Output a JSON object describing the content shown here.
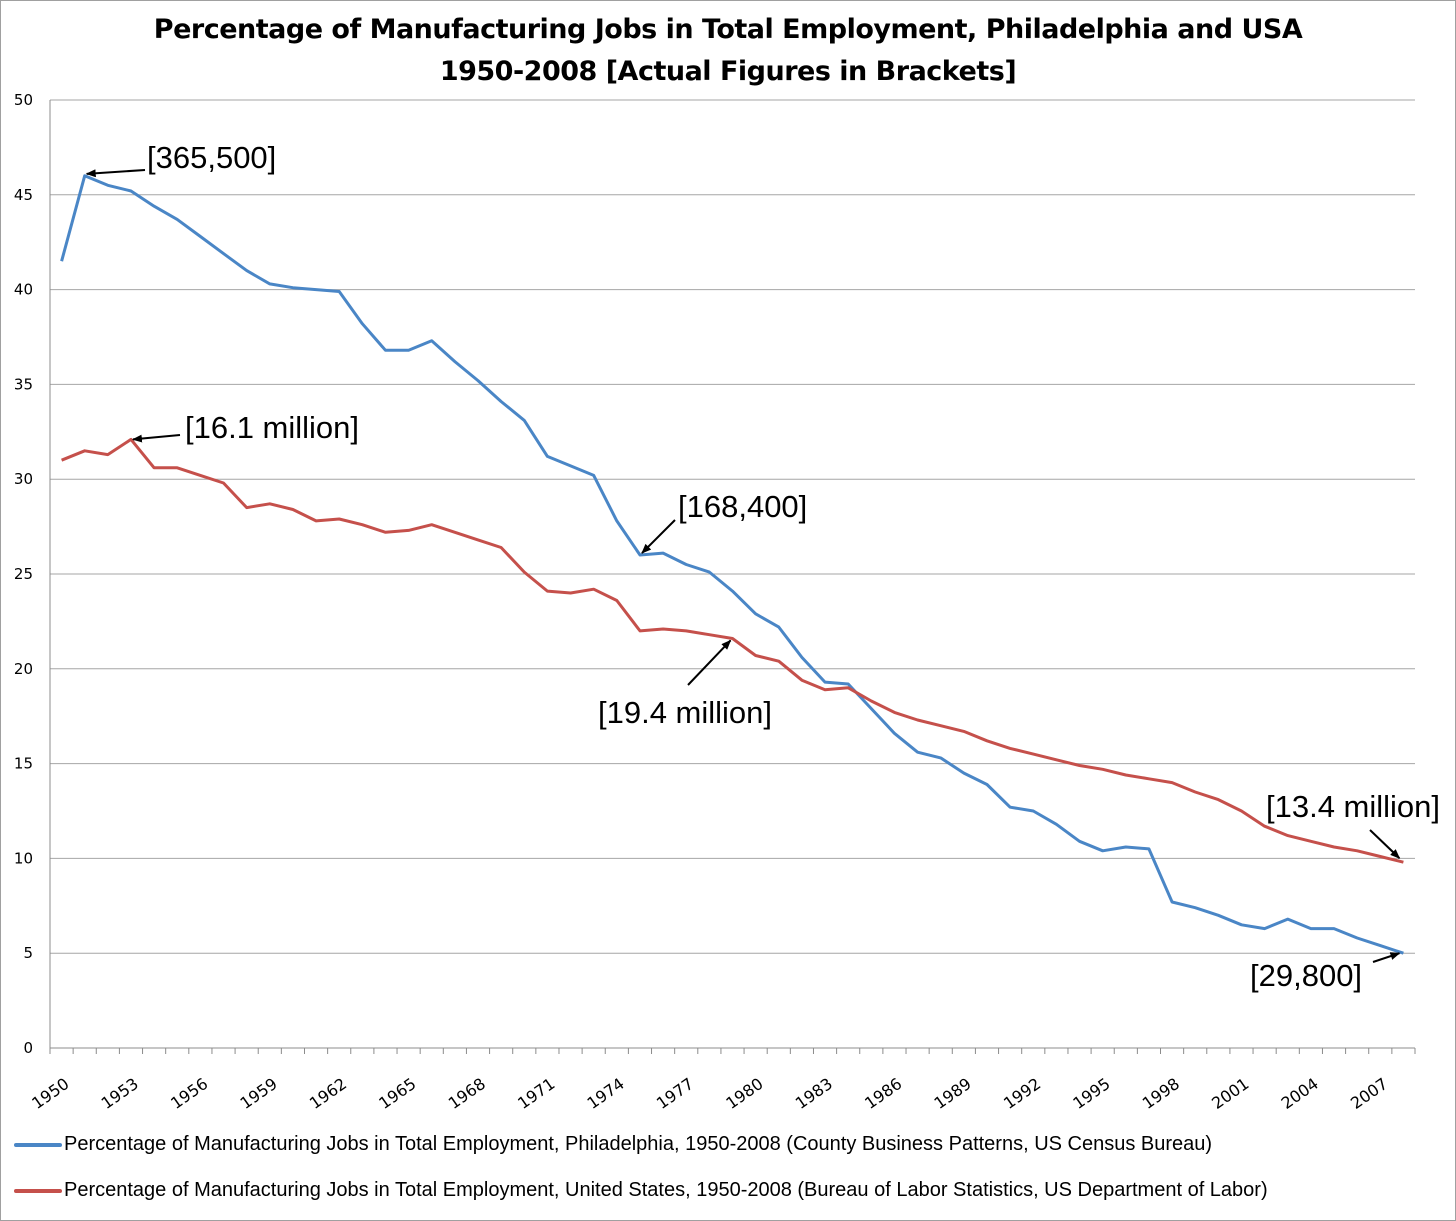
{
  "chart_data": {
    "type": "line",
    "title": "Percentage of Manufacturing Jobs in Total Employment, Philadelphia and USA",
    "subtitle": "1950-2008 [Actual Figures in Brackets]",
    "xlabel": "",
    "ylabel": "",
    "ylim": [
      0,
      50
    ],
    "yticks": [
      0,
      5,
      10,
      15,
      20,
      25,
      30,
      35,
      40,
      45,
      50
    ],
    "grid": true,
    "x": [
      1950,
      1951,
      1952,
      1953,
      1954,
      1955,
      1956,
      1957,
      1958,
      1959,
      1960,
      1961,
      1962,
      1963,
      1964,
      1965,
      1966,
      1967,
      1968,
      1969,
      1970,
      1971,
      1972,
      1973,
      1974,
      1975,
      1976,
      1977,
      1978,
      1979,
      1980,
      1981,
      1982,
      1983,
      1984,
      1985,
      1986,
      1987,
      1988,
      1989,
      1990,
      1991,
      1992,
      1993,
      1994,
      1995,
      1996,
      1997,
      1998,
      1999,
      2000,
      2001,
      2002,
      2003,
      2004,
      2005,
      2006,
      2007,
      2008
    ],
    "xtick_labels": [
      "1950",
      "1953",
      "1956",
      "1959",
      "1962",
      "1965",
      "1968",
      "1971",
      "1974",
      "1977",
      "1980",
      "1983",
      "1986",
      "1989",
      "1992",
      "1995",
      "1998",
      "2001",
      "2004",
      "2007"
    ],
    "legend_position": "bottom",
    "series": [
      {
        "name": "Percentage of Manufacturing Jobs in Total Employment, Philadelphia, 1950-2008 (County Business Patterns, US Census Bureau)",
        "color": "#4a86c6",
        "values": [
          41.5,
          46.0,
          45.5,
          45.2,
          44.4,
          43.7,
          42.8,
          41.9,
          41.0,
          40.3,
          40.1,
          40.0,
          39.9,
          38.2,
          36.8,
          36.8,
          37.3,
          36.2,
          35.2,
          34.1,
          33.1,
          31.2,
          30.7,
          30.2,
          27.8,
          26.0,
          26.1,
          25.5,
          25.1,
          24.1,
          22.9,
          22.2,
          20.6,
          19.3,
          19.2,
          17.9,
          16.6,
          15.6,
          15.3,
          14.5,
          13.9,
          12.7,
          12.5,
          11.8,
          10.9,
          10.4,
          10.6,
          10.5,
          7.7,
          7.4,
          7.0,
          6.5,
          6.3,
          6.8,
          6.3,
          6.3,
          5.8,
          5.4,
          5.0
        ]
      },
      {
        "name": "Percentage of Manufacturing Jobs in Total Employment, United States, 1950-2008 (Bureau of Labor Statistics, US Department of Labor)",
        "color": "#c5504b",
        "values": [
          31.0,
          31.5,
          31.3,
          32.1,
          30.6,
          30.6,
          30.2,
          29.8,
          28.5,
          28.7,
          28.4,
          27.8,
          27.9,
          27.6,
          27.2,
          27.3,
          27.6,
          27.2,
          26.8,
          26.4,
          25.1,
          24.1,
          24.0,
          24.2,
          23.6,
          22.0,
          22.1,
          22.0,
          21.8,
          21.6,
          20.7,
          20.4,
          19.4,
          18.9,
          19.0,
          18.3,
          17.7,
          17.3,
          17.0,
          16.7,
          16.2,
          15.8,
          15.5,
          15.2,
          14.9,
          14.7,
          14.4,
          14.2,
          14.0,
          13.5,
          13.1,
          12.5,
          11.7,
          11.2,
          10.9,
          10.6,
          10.4,
          10.1,
          9.8
        ]
      }
    ],
    "annotations": [
      {
        "text": "[365,500]",
        "series": 0,
        "year": 1951
      },
      {
        "text": "[16.1 million]",
        "series": 1,
        "year": 1953
      },
      {
        "text": "[168,400]",
        "series": 0,
        "year": 1975
      },
      {
        "text": "[19.4 million]",
        "series": 1,
        "year": 1979
      },
      {
        "text": "[13.4 million]",
        "series": 1,
        "year": 2008
      },
      {
        "text": "[29,800]",
        "series": 0,
        "year": 2008
      }
    ]
  }
}
